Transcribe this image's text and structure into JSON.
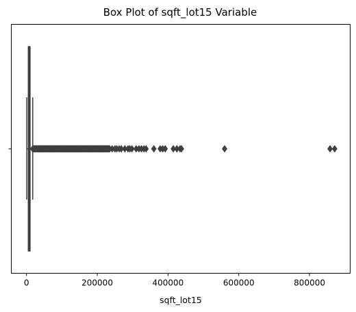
{
  "chart_data": {
    "type": "box",
    "title": "Box Plot of sqft_lot15 Variable",
    "xlabel": "sqft_lot15",
    "ylabel": "",
    "orientation": "horizontal",
    "xlim": [
      -43000,
      915000
    ],
    "xticks": [
      0,
      200000,
      400000,
      600000,
      800000
    ],
    "xtick_labels": [
      "0",
      "200000",
      "400000",
      "600000",
      "800000"
    ],
    "yticks_visible": true,
    "grid": false,
    "legend": "none",
    "box": {
      "whisker_low": 651,
      "q1": 5100,
      "median": 7620,
      "q3": 10083,
      "whisker_high": 17550
    },
    "outliers": {
      "dense_range": [
        17600,
        235000
      ],
      "sparse": [
        242000,
        250000,
        255000,
        262000,
        268000,
        278000,
        287000,
        292000,
        298000,
        310000,
        318000,
        325000,
        332000,
        338000,
        360000,
        378000,
        385000,
        392000,
        415000,
        425000,
        434000,
        438000,
        560000,
        858000,
        871200
      ]
    },
    "colors": {
      "box_line": "#3f3f3f",
      "box_fill": "#3f3f3f",
      "outlier": "#3f3f3f",
      "axis": "#000000"
    }
  }
}
